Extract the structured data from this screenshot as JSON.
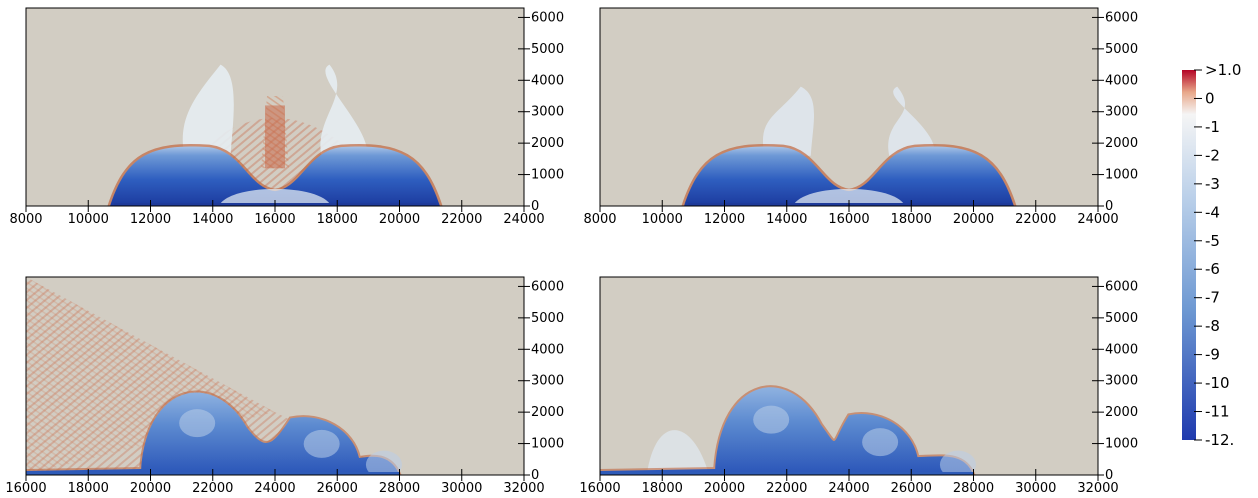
{
  "chart_data": [
    {
      "type": "heatmap",
      "title": "",
      "x_ticks": [
        "8000",
        "10000",
        "12000",
        "14000",
        "16000",
        "18000",
        "20000",
        "22000",
        "24000"
      ],
      "y_ticks": [
        "0",
        "1000",
        "2000",
        "3000",
        "4000",
        "5000",
        "6000"
      ],
      "xlim": [
        8000,
        24000
      ],
      "ylim": [
        0,
        6300
      ],
      "features": {
        "dome": {
          "x_left": 10700,
          "x_right": 21300,
          "height": 2000
        },
        "plumes": [
          {
            "x": 13800,
            "top": 4500,
            "color": "#e6edf2"
          },
          {
            "x": 18200,
            "top": 4500,
            "color": "#e6edf2"
          }
        ],
        "central_column": {
          "x": 16000,
          "top": 3500,
          "color": "#c86a4a"
        },
        "ripples": true
      }
    },
    {
      "type": "heatmap",
      "title": "",
      "x_ticks": [
        "8000",
        "10000",
        "12000",
        "14000",
        "16000",
        "18000",
        "20000",
        "22000",
        "24000"
      ],
      "y_ticks": [
        "0",
        "1000",
        "2000",
        "3000",
        "4000",
        "5000",
        "6000"
      ],
      "xlim": [
        8000,
        24000
      ],
      "ylim": [
        0,
        6300
      ],
      "features": {
        "dome": {
          "x_left": 10700,
          "x_right": 21300,
          "height": 2000
        },
        "plumes": [
          {
            "x": 14000,
            "top": 3800,
            "color": "#dfe7ee"
          },
          {
            "x": 18000,
            "top": 3800,
            "color": "#dfe7ee"
          }
        ],
        "central_column": null,
        "ripples": false
      }
    },
    {
      "type": "heatmap",
      "title": "",
      "x_ticks": [
        "16000",
        "18000",
        "20000",
        "22000",
        "24000",
        "26000",
        "28000",
        "30000",
        "32000"
      ],
      "y_ticks": [
        "0",
        "1000",
        "2000",
        "3000",
        "4000",
        "5000",
        "6000"
      ],
      "xlim": [
        16000,
        32000
      ],
      "ylim": [
        0,
        6300
      ],
      "features": {
        "current_front": 28000,
        "billows": [
          {
            "x": 21500,
            "height": 3000
          },
          {
            "x": 25500,
            "height": 1800
          },
          {
            "x": 27500,
            "height": 600
          }
        ],
        "noise_wedge": true
      }
    },
    {
      "type": "heatmap",
      "title": "",
      "x_ticks": [
        "16000",
        "18000",
        "20000",
        "22000",
        "24000",
        "26000",
        "28000",
        "30000",
        "32000"
      ],
      "y_ticks": [
        "0",
        "1000",
        "2000",
        "3000",
        "4000",
        "5000",
        "6000"
      ],
      "xlim": [
        16000,
        32000
      ],
      "ylim": [
        0,
        6300
      ],
      "features": {
        "current_front": 28000,
        "billows": [
          {
            "x": 21500,
            "height": 3200
          },
          {
            "x": 25000,
            "height": 1900
          },
          {
            "x": 27500,
            "height": 600
          }
        ],
        "noise_wedge": false
      }
    }
  ],
  "colorbar": {
    "labels": [
      ">1.0",
      "0",
      "-1",
      "-2",
      "-3",
      "-4",
      "-5",
      "-6",
      "-7",
      "-8",
      "-9",
      "-10",
      "-11",
      "-12."
    ],
    "colors": [
      "#b40426",
      "#f0d8c8",
      "#f4f6f8",
      "#dae5f0",
      "#c3d6ea",
      "#a9c4e3",
      "#91b3dc",
      "#79a1d4",
      "#628fcc",
      "#4c7cc4",
      "#3a6ac0",
      "#2e58bb",
      "#2748b5",
      "#1f3aae"
    ]
  },
  "colors": {
    "background": "#d2cdc3",
    "zero_level": "#f2f2f2",
    "positive": "#c0461e",
    "negative_strong": "#1f3aae"
  }
}
